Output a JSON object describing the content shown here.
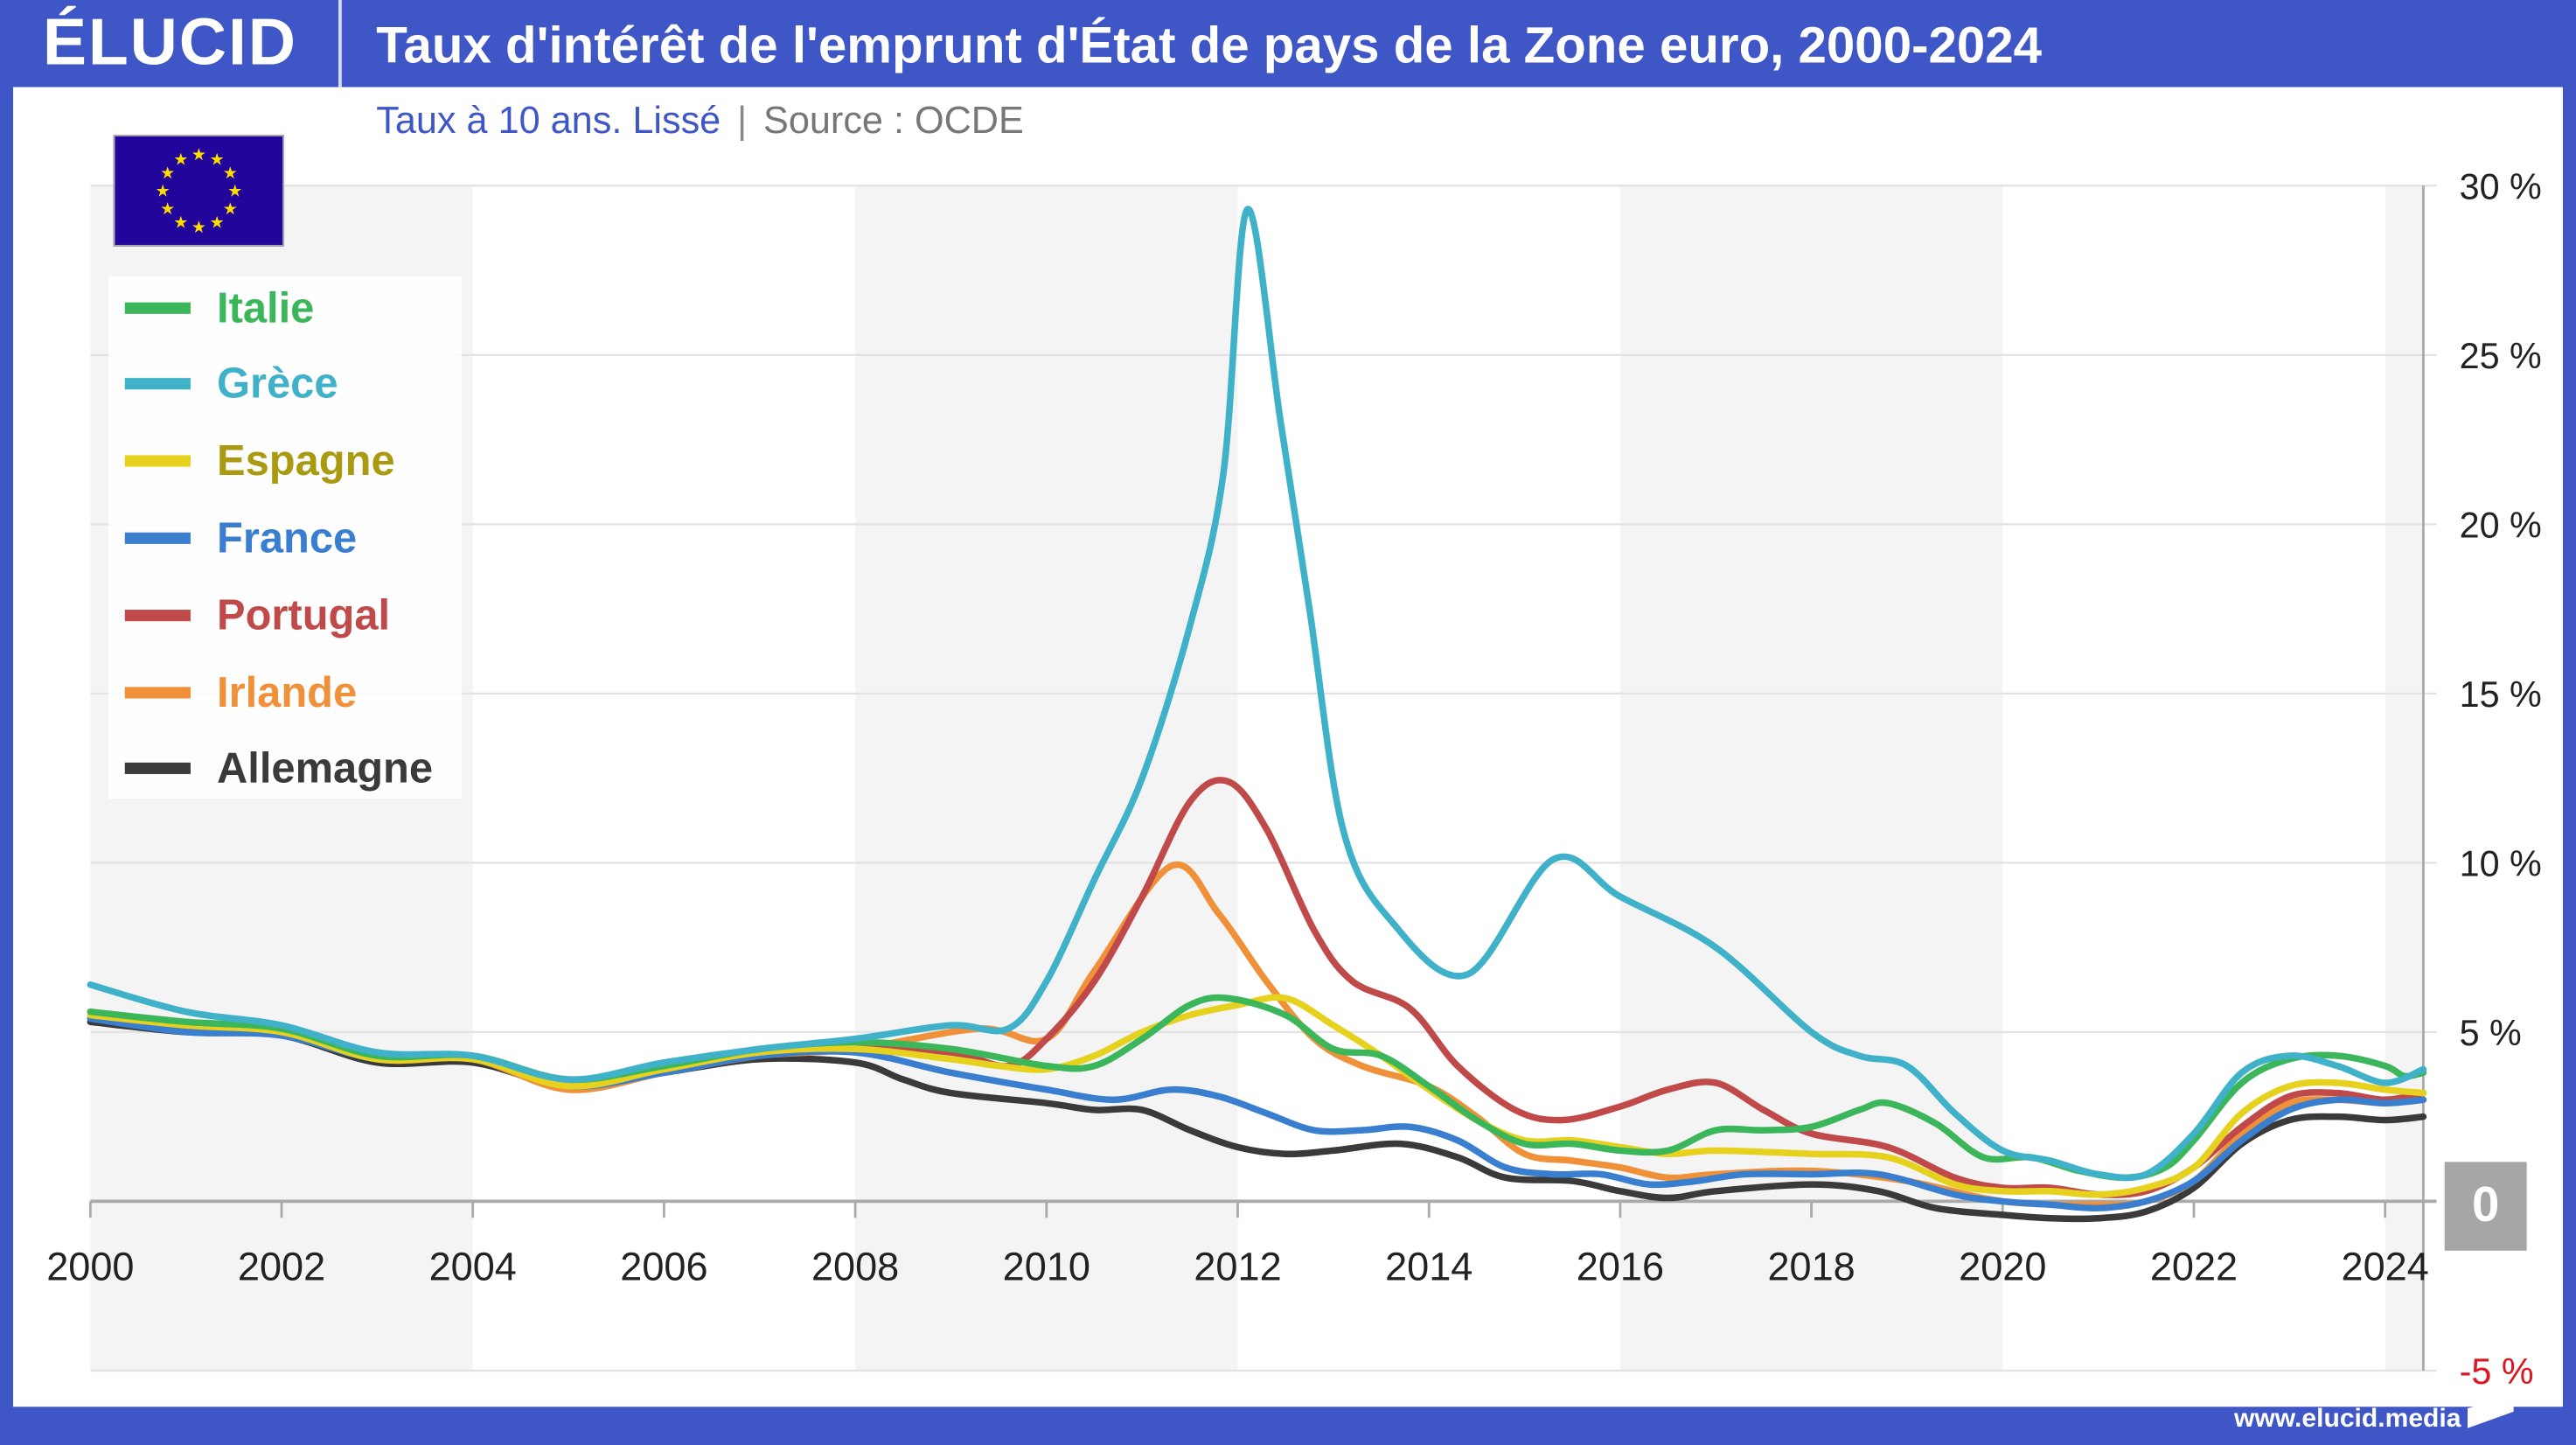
{
  "header": {
    "logo": "ÉLUCID",
    "title": "Taux d'intérêt de l'emprunt d'État de pays de la Zone euro, 2000-2024"
  },
  "subtitle": {
    "text": "Taux à 10 ans. Lissé",
    "separator": "|",
    "source": "Source : OCDE"
  },
  "footer": {
    "url": "www.elucid.media"
  },
  "colors": {
    "brand": "#3f56c7",
    "negative_label": "#e0141e",
    "zero_badge": "#a6a6a6"
  },
  "chart_data": {
    "type": "line",
    "title": "Taux d'intérêt de l'emprunt d'État de pays de la Zone euro, 2000-2024",
    "xlabel": "",
    "ylabel": "",
    "xlim": [
      2000,
      2024.4
    ],
    "ylim": [
      -5,
      30
    ],
    "x_ticks": [
      "2000",
      "2002",
      "2004",
      "2006",
      "2008",
      "2010",
      "2012",
      "2014",
      "2016",
      "2018",
      "2020",
      "2022",
      "2024"
    ],
    "y_ticks": [
      {
        "v": 30,
        "label": "30 %"
      },
      {
        "v": 25,
        "label": "25 %"
      },
      {
        "v": 20,
        "label": "20 %"
      },
      {
        "v": 15,
        "label": "15 %"
      },
      {
        "v": 10,
        "label": "10 %"
      },
      {
        "v": 5,
        "label": "5 %"
      },
      {
        "v": 0,
        "label": "0"
      },
      {
        "v": -5,
        "label": "-5 %"
      }
    ],
    "legend_position": "top-left",
    "series": [
      {
        "name": "Italie",
        "color": "#3cb65a",
        "points": [
          [
            2000,
            5.6
          ],
          [
            2001,
            5.3
          ],
          [
            2002,
            5.1
          ],
          [
            2003,
            4.3
          ],
          [
            2004,
            4.3
          ],
          [
            2005,
            3.6
          ],
          [
            2006,
            4.0
          ],
          [
            2007,
            4.5
          ],
          [
            2008,
            4.7
          ],
          [
            2009,
            4.5
          ],
          [
            2010,
            4.0
          ],
          [
            2010.5,
            4.0
          ],
          [
            2011,
            4.8
          ],
          [
            2011.5,
            5.8
          ],
          [
            2011.9,
            6.0
          ],
          [
            2012.5,
            5.5
          ],
          [
            2013,
            4.5
          ],
          [
            2013.5,
            4.3
          ],
          [
            2014,
            3.4
          ],
          [
            2014.5,
            2.4
          ],
          [
            2015,
            1.7
          ],
          [
            2015.5,
            1.7
          ],
          [
            2016,
            1.5
          ],
          [
            2016.5,
            1.5
          ],
          [
            2017,
            2.1
          ],
          [
            2017.5,
            2.1
          ],
          [
            2018,
            2.2
          ],
          [
            2018.5,
            2.7
          ],
          [
            2018.8,
            2.9
          ],
          [
            2019.3,
            2.3
          ],
          [
            2019.8,
            1.3
          ],
          [
            2020.3,
            1.3
          ],
          [
            2020.8,
            0.9
          ],
          [
            2021.3,
            0.7
          ],
          [
            2021.7,
            1.0
          ],
          [
            2022,
            1.8
          ],
          [
            2022.5,
            3.5
          ],
          [
            2023,
            4.2
          ],
          [
            2023.5,
            4.3
          ],
          [
            2024,
            4.0
          ],
          [
            2024.2,
            3.7
          ],
          [
            2024.4,
            3.8
          ]
        ]
      },
      {
        "name": "Grèce",
        "color": "#3fb1c9",
        "points": [
          [
            2000,
            6.4
          ],
          [
            2001,
            5.6
          ],
          [
            2002,
            5.2
          ],
          [
            2003,
            4.4
          ],
          [
            2004,
            4.3
          ],
          [
            2005,
            3.6
          ],
          [
            2006,
            4.1
          ],
          [
            2007,
            4.5
          ],
          [
            2008,
            4.8
          ],
          [
            2009,
            5.2
          ],
          [
            2009.6,
            5.1
          ],
          [
            2010,
            6.5
          ],
          [
            2010.5,
            9.5
          ],
          [
            2011,
            12.5
          ],
          [
            2011.5,
            17
          ],
          [
            2011.85,
            21.5
          ],
          [
            2012.1,
            29.3
          ],
          [
            2012.45,
            23
          ],
          [
            2012.75,
            17.5
          ],
          [
            2013.1,
            11
          ],
          [
            2013.6,
            8.3
          ],
          [
            2014.4,
            6.7
          ],
          [
            2015.3,
            10.1
          ],
          [
            2016,
            9.0
          ],
          [
            2017,
            7.5
          ],
          [
            2018,
            5.0
          ],
          [
            2018.5,
            4.3
          ],
          [
            2019,
            4.0
          ],
          [
            2019.5,
            2.6
          ],
          [
            2020,
            1.5
          ],
          [
            2020.5,
            1.2
          ],
          [
            2021,
            0.8
          ],
          [
            2021.5,
            0.8
          ],
          [
            2022,
            2.0
          ],
          [
            2022.5,
            3.8
          ],
          [
            2023,
            4.3
          ],
          [
            2023.5,
            4.0
          ],
          [
            2024,
            3.5
          ],
          [
            2024.4,
            3.9
          ]
        ]
      },
      {
        "name": "Espagne",
        "color": "#e6d21e",
        "text_color": "#a99a10",
        "points": [
          [
            2000,
            5.5
          ],
          [
            2001,
            5.2
          ],
          [
            2002,
            5.0
          ],
          [
            2003,
            4.2
          ],
          [
            2004,
            4.2
          ],
          [
            2005,
            3.4
          ],
          [
            2006,
            3.9
          ],
          [
            2007,
            4.4
          ],
          [
            2008,
            4.5
          ],
          [
            2009,
            4.2
          ],
          [
            2009.5,
            4.0
          ],
          [
            2010,
            3.9
          ],
          [
            2010.5,
            4.3
          ],
          [
            2011,
            5.0
          ],
          [
            2011.5,
            5.5
          ],
          [
            2012,
            5.8
          ],
          [
            2012.5,
            6.0
          ],
          [
            2013,
            5.2
          ],
          [
            2013.5,
            4.3
          ],
          [
            2014,
            3.3
          ],
          [
            2014.5,
            2.4
          ],
          [
            2015,
            1.8
          ],
          [
            2015.5,
            1.8
          ],
          [
            2016,
            1.6
          ],
          [
            2016.5,
            1.4
          ],
          [
            2017,
            1.5
          ],
          [
            2018,
            1.4
          ],
          [
            2018.8,
            1.3
          ],
          [
            2019.5,
            0.5
          ],
          [
            2020,
            0.3
          ],
          [
            2020.5,
            0.3
          ],
          [
            2021,
            0.2
          ],
          [
            2021.5,
            0.4
          ],
          [
            2022,
            1.0
          ],
          [
            2022.5,
            2.6
          ],
          [
            2023,
            3.4
          ],
          [
            2023.5,
            3.5
          ],
          [
            2024,
            3.3
          ],
          [
            2024.4,
            3.2
          ]
        ]
      },
      {
        "name": "France",
        "color": "#3a7fcf",
        "points": [
          [
            2000,
            5.4
          ],
          [
            2001,
            5.0
          ],
          [
            2002,
            4.9
          ],
          [
            2003,
            4.2
          ],
          [
            2004,
            4.2
          ],
          [
            2005,
            3.4
          ],
          [
            2006,
            3.8
          ],
          [
            2007,
            4.3
          ],
          [
            2008,
            4.4
          ],
          [
            2009,
            3.8
          ],
          [
            2010,
            3.3
          ],
          [
            2010.7,
            3.0
          ],
          [
            2011.3,
            3.3
          ],
          [
            2011.8,
            3.1
          ],
          [
            2012.3,
            2.6
          ],
          [
            2012.8,
            2.1
          ],
          [
            2013.3,
            2.1
          ],
          [
            2013.8,
            2.2
          ],
          [
            2014.3,
            1.8
          ],
          [
            2014.8,
            1.0
          ],
          [
            2015.3,
            0.8
          ],
          [
            2015.8,
            0.8
          ],
          [
            2016.3,
            0.5
          ],
          [
            2016.8,
            0.6
          ],
          [
            2017.3,
            0.8
          ],
          [
            2018,
            0.8
          ],
          [
            2018.7,
            0.8
          ],
          [
            2019.5,
            0.2
          ],
          [
            2020,
            0.0
          ],
          [
            2020.5,
            -0.1
          ],
          [
            2021,
            -0.2
          ],
          [
            2021.5,
            0.0
          ],
          [
            2022,
            0.6
          ],
          [
            2022.5,
            1.8
          ],
          [
            2023,
            2.7
          ],
          [
            2023.5,
            3.0
          ],
          [
            2024,
            2.9
          ],
          [
            2024.4,
            3.0
          ]
        ]
      },
      {
        "name": "Portugal",
        "color": "#c04a4a",
        "points": [
          [
            2000,
            5.6
          ],
          [
            2001,
            5.2
          ],
          [
            2002,
            5.1
          ],
          [
            2003,
            4.2
          ],
          [
            2004,
            4.2
          ],
          [
            2005,
            3.4
          ],
          [
            2006,
            3.9
          ],
          [
            2007,
            4.4
          ],
          [
            2008,
            4.5
          ],
          [
            2009,
            4.4
          ],
          [
            2009.6,
            4.0
          ],
          [
            2010,
            4.8
          ],
          [
            2010.5,
            6.5
          ],
          [
            2011,
            9.0
          ],
          [
            2011.5,
            11.8
          ],
          [
            2011.9,
            12.4
          ],
          [
            2012.3,
            11
          ],
          [
            2012.8,
            8
          ],
          [
            2013.2,
            6.5
          ],
          [
            2013.8,
            5.7
          ],
          [
            2014.3,
            4.0
          ],
          [
            2014.9,
            2.7
          ],
          [
            2015.4,
            2.4
          ],
          [
            2016,
            2.8
          ],
          [
            2016.5,
            3.3
          ],
          [
            2017,
            3.5
          ],
          [
            2017.5,
            2.7
          ],
          [
            2018,
            2.0
          ],
          [
            2018.8,
            1.6
          ],
          [
            2019.5,
            0.7
          ],
          [
            2020,
            0.4
          ],
          [
            2020.5,
            0.4
          ],
          [
            2021,
            0.2
          ],
          [
            2021.5,
            0.3
          ],
          [
            2022,
            1.0
          ],
          [
            2022.5,
            2.2
          ],
          [
            2023,
            3.1
          ],
          [
            2023.5,
            3.2
          ],
          [
            2024,
            3.0
          ],
          [
            2024.4,
            3.2
          ]
        ]
      },
      {
        "name": "Irlande",
        "color": "#f0913a",
        "points": [
          [
            2000,
            5.5
          ],
          [
            2001,
            5.1
          ],
          [
            2002,
            5.0
          ],
          [
            2003,
            4.2
          ],
          [
            2004,
            4.2
          ],
          [
            2005,
            3.3
          ],
          [
            2006,
            3.8
          ],
          [
            2007,
            4.3
          ],
          [
            2008,
            4.5
          ],
          [
            2009.3,
            5.1
          ],
          [
            2010,
            4.8
          ],
          [
            2010.5,
            6.8
          ],
          [
            2011.3,
            9.9
          ],
          [
            2011.8,
            8.5
          ],
          [
            2012.3,
            6.5
          ],
          [
            2012.8,
            4.8
          ],
          [
            2013.3,
            4.0
          ],
          [
            2014,
            3.4
          ],
          [
            2014.5,
            2.5
          ],
          [
            2015,
            1.4
          ],
          [
            2015.5,
            1.2
          ],
          [
            2016,
            1.0
          ],
          [
            2016.5,
            0.7
          ],
          [
            2017,
            0.8
          ],
          [
            2018,
            0.9
          ],
          [
            2019,
            0.6
          ],
          [
            2020,
            0.0
          ],
          [
            2021,
            -0.1
          ],
          [
            2021.5,
            0.0
          ],
          [
            2022,
            0.6
          ],
          [
            2022.5,
            2.0
          ],
          [
            2023,
            2.9
          ],
          [
            2023.5,
            3.0
          ],
          [
            2024,
            2.9
          ],
          [
            2024.4,
            3.0
          ]
        ]
      },
      {
        "name": "Allemagne",
        "color": "#3a3a3a",
        "points": [
          [
            2000,
            5.3
          ],
          [
            2001,
            5.0
          ],
          [
            2002,
            4.9
          ],
          [
            2003,
            4.1
          ],
          [
            2004,
            4.1
          ],
          [
            2005,
            3.4
          ],
          [
            2006,
            3.8
          ],
          [
            2007,
            4.2
          ],
          [
            2008,
            4.1
          ],
          [
            2008.5,
            3.6
          ],
          [
            2009,
            3.2
          ],
          [
            2010,
            2.9
          ],
          [
            2010.5,
            2.7
          ],
          [
            2011,
            2.7
          ],
          [
            2011.5,
            2.1
          ],
          [
            2012,
            1.6
          ],
          [
            2012.5,
            1.4
          ],
          [
            2013,
            1.5
          ],
          [
            2013.7,
            1.7
          ],
          [
            2014.3,
            1.3
          ],
          [
            2014.8,
            0.7
          ],
          [
            2015.5,
            0.6
          ],
          [
            2016,
            0.3
          ],
          [
            2016.5,
            0.1
          ],
          [
            2017,
            0.3
          ],
          [
            2018,
            0.5
          ],
          [
            2018.7,
            0.3
          ],
          [
            2019.3,
            -0.2
          ],
          [
            2020,
            -0.4
          ],
          [
            2020.5,
            -0.5
          ],
          [
            2021,
            -0.5
          ],
          [
            2021.5,
            -0.3
          ],
          [
            2022,
            0.4
          ],
          [
            2022.5,
            1.7
          ],
          [
            2023,
            2.4
          ],
          [
            2023.5,
            2.5
          ],
          [
            2024,
            2.4
          ],
          [
            2024.4,
            2.5
          ]
        ]
      }
    ]
  }
}
